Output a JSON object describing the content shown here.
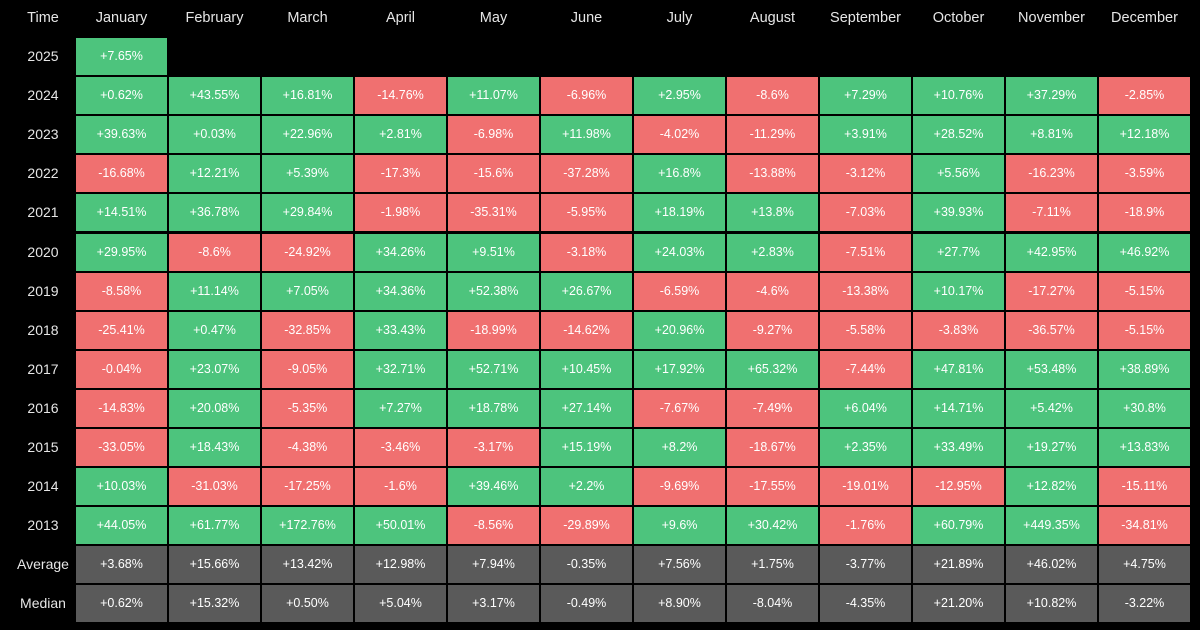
{
  "colors": {
    "background": "#000000",
    "positive": "#4dc47d",
    "negative": "#f07070",
    "summary": "#5a5a5a",
    "header_text": "#e6e6e6",
    "cell_text": "#ffffff"
  },
  "chart_data": {
    "type": "heatmap",
    "corner_label": "Time",
    "columns": [
      "January",
      "February",
      "March",
      "April",
      "May",
      "June",
      "July",
      "August",
      "September",
      "October",
      "November",
      "December"
    ],
    "rows": [
      {
        "label": "2025",
        "kind": "year",
        "values": [
          "+7.65%",
          null,
          null,
          null,
          null,
          null,
          null,
          null,
          null,
          null,
          null,
          null
        ]
      },
      {
        "label": "2024",
        "kind": "year",
        "values": [
          "+0.62%",
          "+43.55%",
          "+16.81%",
          "-14.76%",
          "+11.07%",
          "-6.96%",
          "+2.95%",
          "-8.6%",
          "+7.29%",
          "+10.76%",
          "+37.29%",
          "-2.85%"
        ]
      },
      {
        "label": "2023",
        "kind": "year",
        "values": [
          "+39.63%",
          "+0.03%",
          "+22.96%",
          "+2.81%",
          "-6.98%",
          "+11.98%",
          "-4.02%",
          "-11.29%",
          "+3.91%",
          "+28.52%",
          "+8.81%",
          "+12.18%"
        ]
      },
      {
        "label": "2022",
        "kind": "year",
        "values": [
          "-16.68%",
          "+12.21%",
          "+5.39%",
          "-17.3%",
          "-15.6%",
          "-37.28%",
          "+16.8%",
          "-13.88%",
          "-3.12%",
          "+5.56%",
          "-16.23%",
          "-3.59%"
        ]
      },
      {
        "label": "2021",
        "kind": "year",
        "values": [
          "+14.51%",
          "+36.78%",
          "+29.84%",
          "-1.98%",
          "-35.31%",
          "-5.95%",
          "+18.19%",
          "+13.8%",
          "-7.03%",
          "+39.93%",
          "-7.11%",
          "-18.9%"
        ]
      },
      {
        "label": "2020",
        "kind": "year",
        "values": [
          "+29.95%",
          "-8.6%",
          "-24.92%",
          "+34.26%",
          "+9.51%",
          "-3.18%",
          "+24.03%",
          "+2.83%",
          "-7.51%",
          "+27.7%",
          "+42.95%",
          "+46.92%"
        ]
      },
      {
        "label": "2019",
        "kind": "year",
        "values": [
          "-8.58%",
          "+11.14%",
          "+7.05%",
          "+34.36%",
          "+52.38%",
          "+26.67%",
          "-6.59%",
          "-4.6%",
          "-13.38%",
          "+10.17%",
          "-17.27%",
          "-5.15%"
        ]
      },
      {
        "label": "2018",
        "kind": "year",
        "values": [
          "-25.41%",
          "+0.47%",
          "-32.85%",
          "+33.43%",
          "-18.99%",
          "-14.62%",
          "+20.96%",
          "-9.27%",
          "-5.58%",
          "-3.83%",
          "-36.57%",
          "-5.15%"
        ]
      },
      {
        "label": "2017",
        "kind": "year",
        "values": [
          "-0.04%",
          "+23.07%",
          "-9.05%",
          "+32.71%",
          "+52.71%",
          "+10.45%",
          "+17.92%",
          "+65.32%",
          "-7.44%",
          "+47.81%",
          "+53.48%",
          "+38.89%"
        ]
      },
      {
        "label": "2016",
        "kind": "year",
        "values": [
          "-14.83%",
          "+20.08%",
          "-5.35%",
          "+7.27%",
          "+18.78%",
          "+27.14%",
          "-7.67%",
          "-7.49%",
          "+6.04%",
          "+14.71%",
          "+5.42%",
          "+30.8%"
        ]
      },
      {
        "label": "2015",
        "kind": "year",
        "values": [
          "-33.05%",
          "+18.43%",
          "-4.38%",
          "-3.46%",
          "-3.17%",
          "+15.19%",
          "+8.2%",
          "-18.67%",
          "+2.35%",
          "+33.49%",
          "+19.27%",
          "+13.83%"
        ]
      },
      {
        "label": "2014",
        "kind": "year",
        "values": [
          "+10.03%",
          "-31.03%",
          "-17.25%",
          "-1.6%",
          "+39.46%",
          "+2.2%",
          "-9.69%",
          "-17.55%",
          "-19.01%",
          "-12.95%",
          "+12.82%",
          "-15.11%"
        ]
      },
      {
        "label": "2013",
        "kind": "year",
        "values": [
          "+44.05%",
          "+61.77%",
          "+172.76%",
          "+50.01%",
          "-8.56%",
          "-29.89%",
          "+9.6%",
          "+30.42%",
          "-1.76%",
          "+60.79%",
          "+449.35%",
          "-34.81%"
        ]
      },
      {
        "label": "Average",
        "kind": "summary",
        "values": [
          "+3.68%",
          "+15.66%",
          "+13.42%",
          "+12.98%",
          "+7.94%",
          "-0.35%",
          "+7.56%",
          "+1.75%",
          "-3.77%",
          "+21.89%",
          "+46.02%",
          "+4.75%"
        ]
      },
      {
        "label": "Median",
        "kind": "summary",
        "values": [
          "+0.62%",
          "+15.32%",
          "+0.50%",
          "+5.04%",
          "+3.17%",
          "-0.49%",
          "+8.90%",
          "-8.04%",
          "-4.35%",
          "+21.20%",
          "+10.82%",
          "-3.22%"
        ]
      }
    ]
  }
}
